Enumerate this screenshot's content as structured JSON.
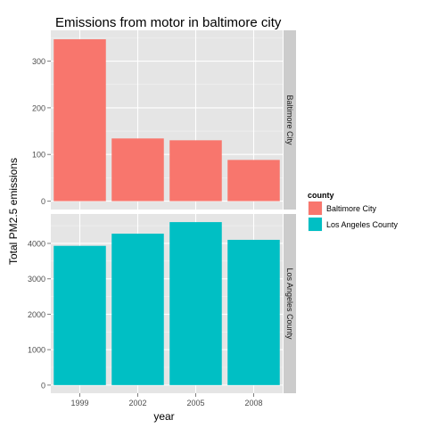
{
  "chart_data": {
    "type": "bar",
    "title": "Emissions from motor in baltimore city",
    "xlabel": "year",
    "ylabel": "Total PM2.5 emissions",
    "categories": [
      "1999",
      "2002",
      "2005",
      "2008"
    ],
    "legend": {
      "title": "county",
      "placement": "right",
      "entries": [
        "Baltimore City",
        "Los Angeles County"
      ]
    },
    "colors": {
      "Baltimore City": "#F8766D",
      "Los Angeles County": "#00BFC4"
    },
    "grid": true,
    "panels": [
      {
        "strip": "Baltimore City",
        "series": "Baltimore City",
        "values": [
          346.8,
          134.3,
          130.4,
          88.3
        ],
        "ylim": [
          -18,
          366
        ],
        "yticks": [
          0,
          100,
          200,
          300
        ]
      },
      {
        "strip": "Los Angeles County",
        "series": "Los Angeles County",
        "values": [
          3931,
          4274,
          4601,
          4101
        ],
        "ylim": [
          -230,
          4830
        ],
        "yticks": [
          0,
          1000,
          2000,
          3000,
          4000
        ]
      }
    ]
  }
}
